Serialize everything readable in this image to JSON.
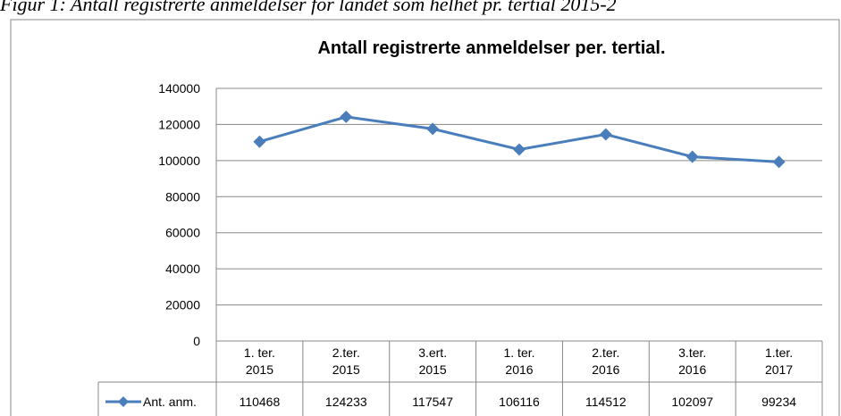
{
  "caption": "Figur 1: Antall registrerte anmeldelser for landet som helhet pr. tertial 2015-2",
  "chart_data": {
    "type": "line",
    "title": "Antall registrerte anmeldelser  per. tertial.",
    "categories": [
      "1. ter.\n2015",
      "2.ter.\n2015",
      "3.ert.\n2015",
      "1. ter.\n2016",
      "2.ter.\n2016",
      "3.ter.\n2016",
      "1.ter.\n2017"
    ],
    "series": [
      {
        "name": "Ant. anm.",
        "color": "#4a7ebb",
        "values": [
          110468,
          124233,
          117547,
          106116,
          114512,
          102097,
          99234
        ]
      }
    ],
    "ylim": [
      0,
      140000
    ],
    "yticks": [
      0,
      20000,
      40000,
      60000,
      80000,
      100000,
      120000,
      140000
    ],
    "grid": true,
    "data_table": true
  }
}
